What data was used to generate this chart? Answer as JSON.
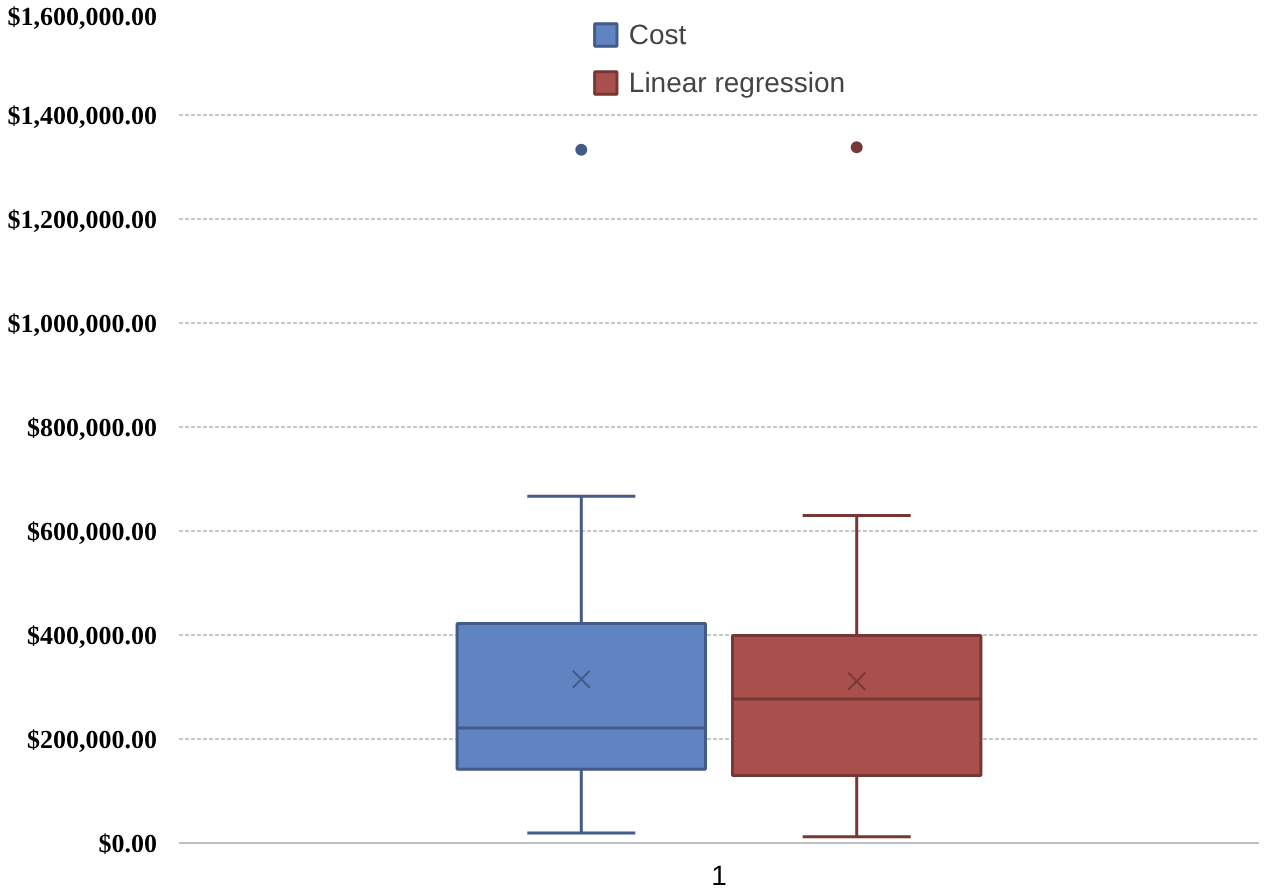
{
  "chart_data": {
    "type": "box",
    "categories": [
      "1"
    ],
    "series": [
      {
        "name": "Cost",
        "color": "#6083c2",
        "boxes": [
          {
            "low": 19000,
            "q1": 142000,
            "median": 221000,
            "q3": 422000,
            "high": 667000,
            "mean": 315000,
            "outliers": [
              1333000
            ]
          }
        ]
      },
      {
        "name": "Linear regression",
        "color": "#a9504d",
        "boxes": [
          {
            "low": 12000,
            "q1": 130000,
            "median": 277000,
            "q3": 399000,
            "high": 630000,
            "mean": 311000,
            "outliers": [
              1338000
            ]
          }
        ]
      }
    ],
    "ylim": [
      0,
      1600000
    ],
    "yticks": [
      {
        "value": 0,
        "label": "$0.00"
      },
      {
        "value": 200000,
        "label": "$200,000.00"
      },
      {
        "value": 400000,
        "label": "$400,000.00"
      },
      {
        "value": 600000,
        "label": "$600,000.00"
      },
      {
        "value": 800000,
        "label": "$800,000.00"
      },
      {
        "value": 1000000,
        "label": "$1,000,000.00"
      },
      {
        "value": 1200000,
        "label": "$1,200,000.00"
      },
      {
        "value": 1400000,
        "label": "$1,400,000.00"
      },
      {
        "value": 1600000,
        "label": "$1,600,000.00"
      }
    ],
    "grid": "y",
    "legend": "top"
  }
}
